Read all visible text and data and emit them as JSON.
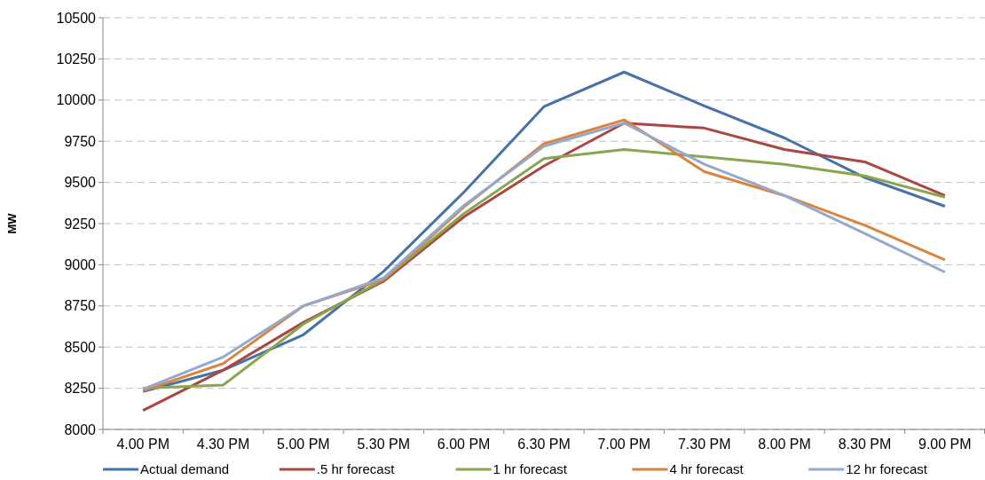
{
  "chart_data": {
    "type": "line",
    "ylabel": "MW",
    "categories": [
      "4.00 PM",
      "4.30 PM",
      "5.00 PM",
      "5.30 PM",
      "6.00 PM",
      "6.30 PM",
      "7.00 PM",
      "7.30 PM",
      "8.00 PM",
      "8.30 PM",
      "9.00 PM"
    ],
    "series": [
      {
        "name": "Actual demand",
        "color": "#4572a7",
        "values": [
          8230,
          8360,
          8575,
          8960,
          9440,
          9960,
          10170,
          9965,
          9770,
          9530,
          9355
        ]
      },
      {
        "name": ".5 hr forecast",
        "color": "#aa4643",
        "values": [
          8115,
          8360,
          8650,
          8900,
          9290,
          9600,
          9860,
          9830,
          9700,
          9625,
          9420
        ]
      },
      {
        "name": "1 hr forecast",
        "color": "#89a54e",
        "values": [
          8250,
          8270,
          8640,
          8910,
          9310,
          9645,
          9700,
          9655,
          9610,
          9540,
          9410
        ]
      },
      {
        "name": "4 hr forecast",
        "color": "#db843d",
        "values": [
          8235,
          8400,
          8750,
          8910,
          9350,
          9735,
          9880,
          9565,
          9420,
          9240,
          9030
        ]
      },
      {
        "name": "12 hr forecast",
        "color": "#93a9cf",
        "values": [
          8245,
          8440,
          8750,
          8920,
          9360,
          9720,
          9860,
          9610,
          9420,
          9190,
          8955
        ]
      }
    ],
    "ylim": [
      8000,
      10500
    ],
    "yticks": [
      8000,
      8250,
      8500,
      8750,
      9000,
      9250,
      9500,
      9750,
      10000,
      10250,
      10500
    ],
    "grid": "y",
    "legend": "bottom",
    "marker": "none",
    "line_style": "solid"
  }
}
